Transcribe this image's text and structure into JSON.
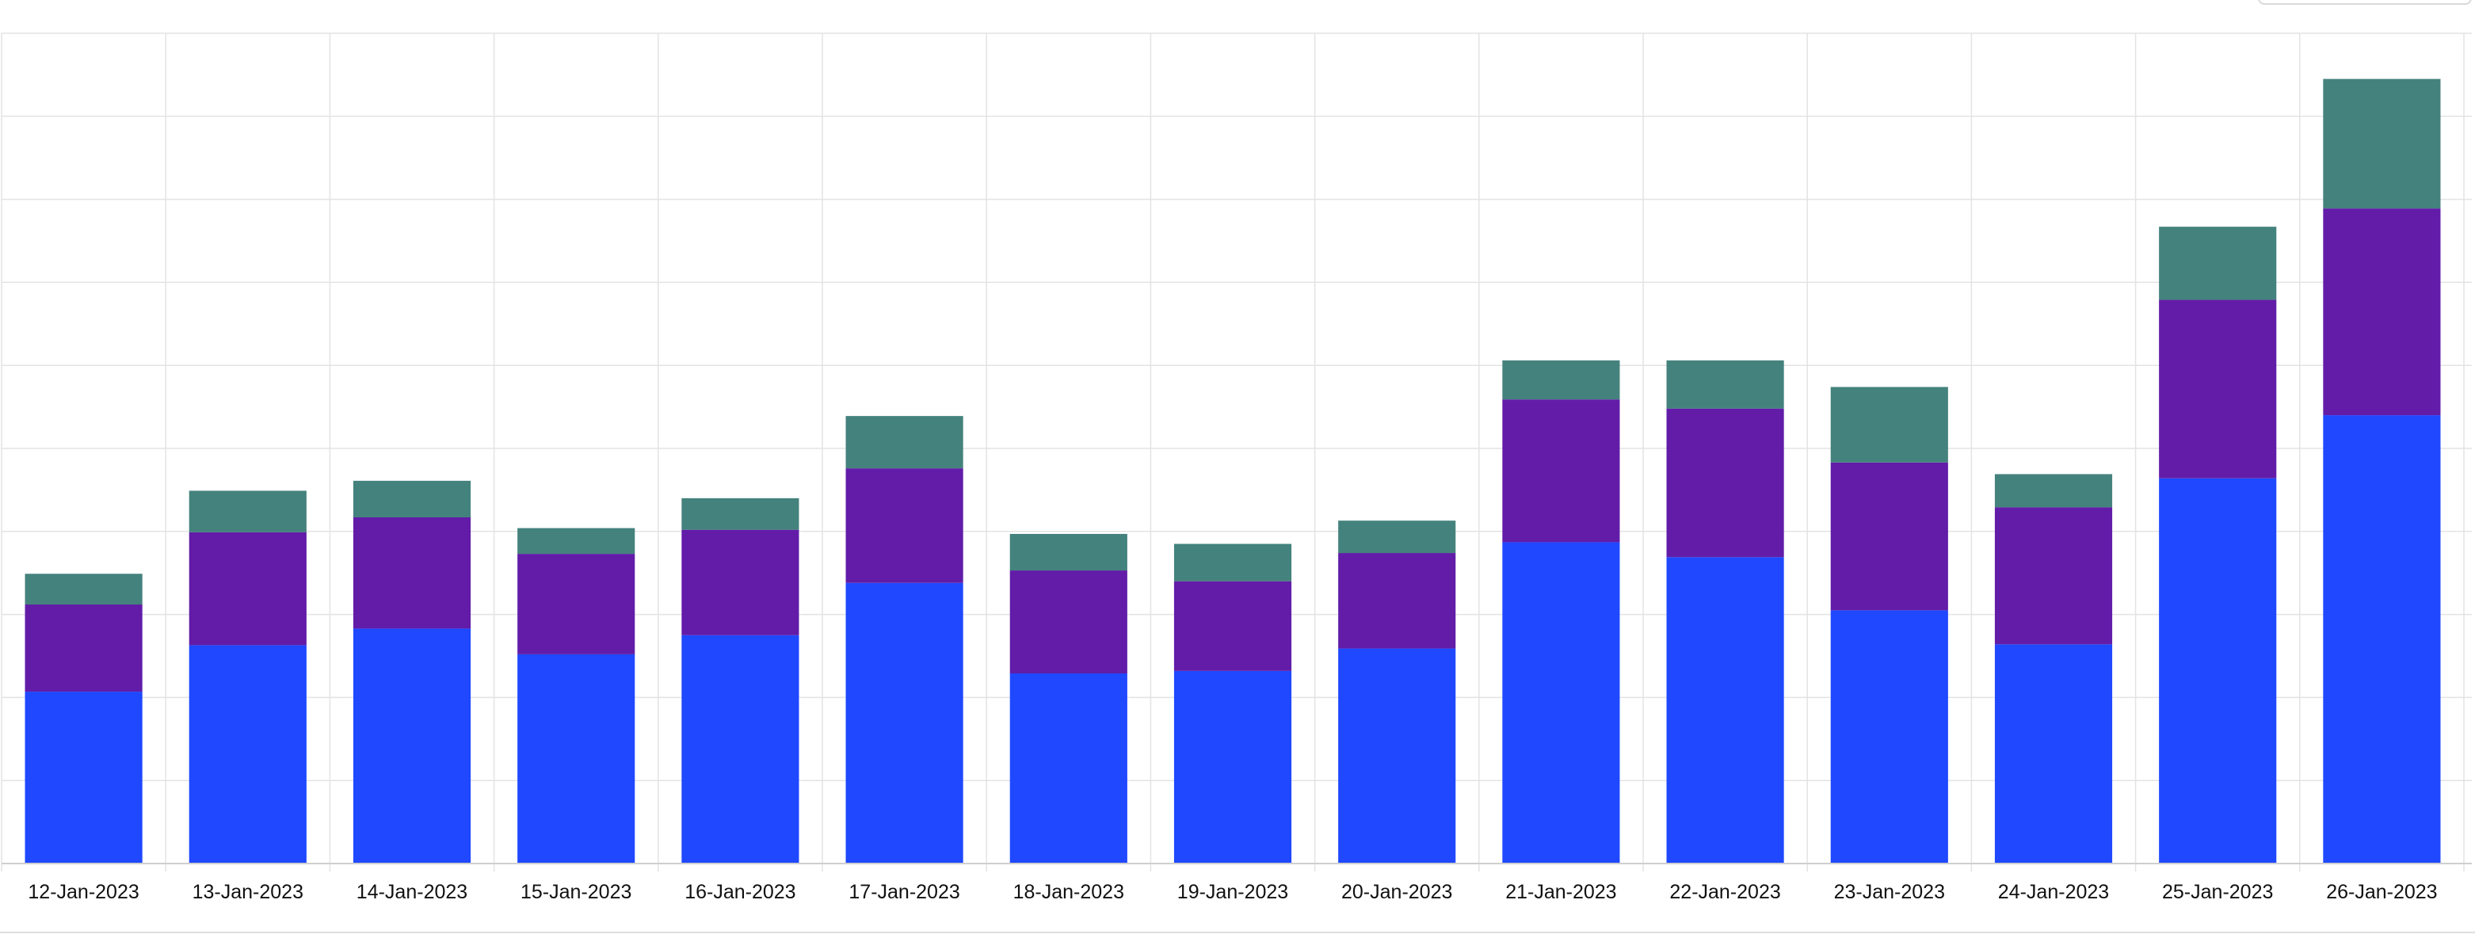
{
  "chart_data": {
    "type": "bar",
    "stacked": true,
    "categories": [
      "12-Jan-2023",
      "13-Jan-2023",
      "14-Jan-2023",
      "15-Jan-2023",
      "16-Jan-2023",
      "17-Jan-2023",
      "18-Jan-2023",
      "19-Jan-2023",
      "20-Jan-2023",
      "21-Jan-2023",
      "22-Jan-2023",
      "23-Jan-2023",
      "24-Jan-2023",
      "25-Jan-2023",
      "26-Jan-2023"
    ],
    "series": [
      {
        "color": "#1f48ff",
        "values": [
          2.07,
          2.63,
          2.83,
          2.52,
          2.75,
          3.38,
          2.29,
          2.32,
          2.59,
          3.87,
          3.69,
          3.05,
          2.64,
          4.64,
          5.4
        ]
      },
      {
        "color": "#621ca8",
        "values": [
          1.05,
          1.36,
          1.34,
          1.21,
          1.27,
          1.38,
          1.24,
          1.08,
          1.15,
          1.72,
          1.79,
          1.78,
          1.65,
          2.15,
          2.49
        ]
      },
      {
        "color": "#44827d",
        "values": [
          0.37,
          0.5,
          0.44,
          0.31,
          0.38,
          0.63,
          0.44,
          0.45,
          0.39,
          0.47,
          0.58,
          0.91,
          0.4,
          0.88,
          1.56
        ]
      }
    ],
    "ylim": [
      0,
      10
    ],
    "grid": true,
    "title": "",
    "xlabel": "",
    "ylabel": ""
  }
}
